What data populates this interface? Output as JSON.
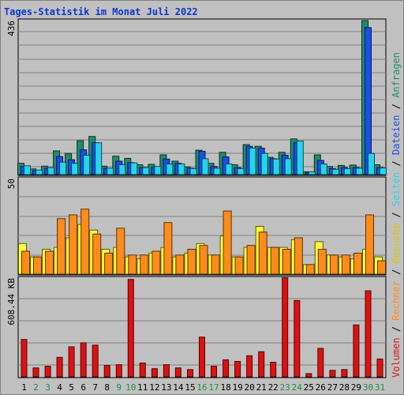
{
  "chart_data": {
    "type": "bar",
    "title": "Tages-Statistik im Monat Juli 2022",
    "categories": [
      "1",
      "2",
      "3",
      "4",
      "5",
      "6",
      "7",
      "8",
      "9",
      "10",
      "11",
      "12",
      "13",
      "14",
      "15",
      "16",
      "17",
      "18",
      "19",
      "20",
      "21",
      "22",
      "23",
      "24",
      "25",
      "26",
      "27",
      "28",
      "29",
      "30",
      "31"
    ],
    "weekend_days": [
      "2",
      "3",
      "9",
      "10",
      "16",
      "17",
      "23",
      "24",
      "30",
      "31"
    ],
    "panels": [
      {
        "id": "top",
        "ymax_label": "436",
        "ymax": 436,
        "series": [
          {
            "name": "Anfragen",
            "color": "#1e8c6e",
            "values": [
              32,
              16,
              24,
              67,
              60,
              96,
              108,
              24,
              52,
              46,
              28,
              29,
              56,
              38,
              22,
              69,
              32,
              63,
              28,
              85,
              80,
              49,
              63,
              101,
              8,
              56,
              23,
              26,
              27,
              436,
              28
            ]
          },
          {
            "name": "Dateien",
            "color": "#1a4fe8",
            "values": [
              23,
              11,
              18,
              51,
              42,
              70,
              90,
              18,
              38,
              34,
              20,
              21,
              44,
              32,
              18,
              66,
              23,
              50,
              20,
              80,
              75,
              45,
              55,
              90,
              6,
              40,
              17,
              20,
              20,
              416,
              20
            ]
          },
          {
            "name": "Seiten",
            "color": "#26d4f0",
            "values": [
              25,
              13,
              20,
              35,
              32,
              55,
              90,
              18,
              28,
              33,
              20,
              23,
              30,
              30,
              17,
              45,
              18,
              30,
              17,
              75,
              60,
              44,
              45,
              95,
              8,
              30,
              15,
              17,
              18,
              60,
              19
            ]
          }
        ]
      },
      {
        "id": "middle",
        "ymax_label": "50",
        "ymax": 50,
        "series": [
          {
            "name": "Besuche",
            "color": "#ffff33",
            "values": [
              16,
              9,
              13,
              14,
              19,
              26,
              23,
              13,
              14,
              9,
              8,
              11,
              14,
              9,
              11,
              16,
              10,
              20,
              9,
              14,
              25,
              14,
              14,
              18,
              5,
              17,
              10,
              9,
              8,
              13,
              9
            ]
          },
          {
            "name": "Rechner",
            "color": "#ff8c1a",
            "values": [
              12,
              9,
              12,
              29,
              31,
              34,
              21,
              11,
              24,
              10,
              10,
              12,
              27,
              10,
              13,
              15,
              10,
              33,
              9,
              15,
              22,
              14,
              13,
              19,
              5,
              13,
              10,
              10,
              11,
              31,
              7
            ]
          }
        ]
      },
      {
        "id": "bottom",
        "ymax_label": "608.44 KB",
        "ymax": 608.44,
        "series": [
          {
            "name": "Volumen",
            "color": "#e01010",
            "values": [
              230,
              55,
              65,
              120,
              185,
              210,
              195,
              70,
              75,
              600,
              85,
              50,
              75,
              55,
              45,
              245,
              65,
              105,
              95,
              130,
              155,
              90,
              610,
              470,
              20,
              175,
              40,
              45,
              320,
              530,
              110
            ]
          }
        ]
      }
    ],
    "legend_order": [
      "Volumen",
      "Rechner",
      "Besuche",
      "Seiten",
      "Dateien",
      "Anfragen"
    ],
    "legend_separator": "/"
  }
}
